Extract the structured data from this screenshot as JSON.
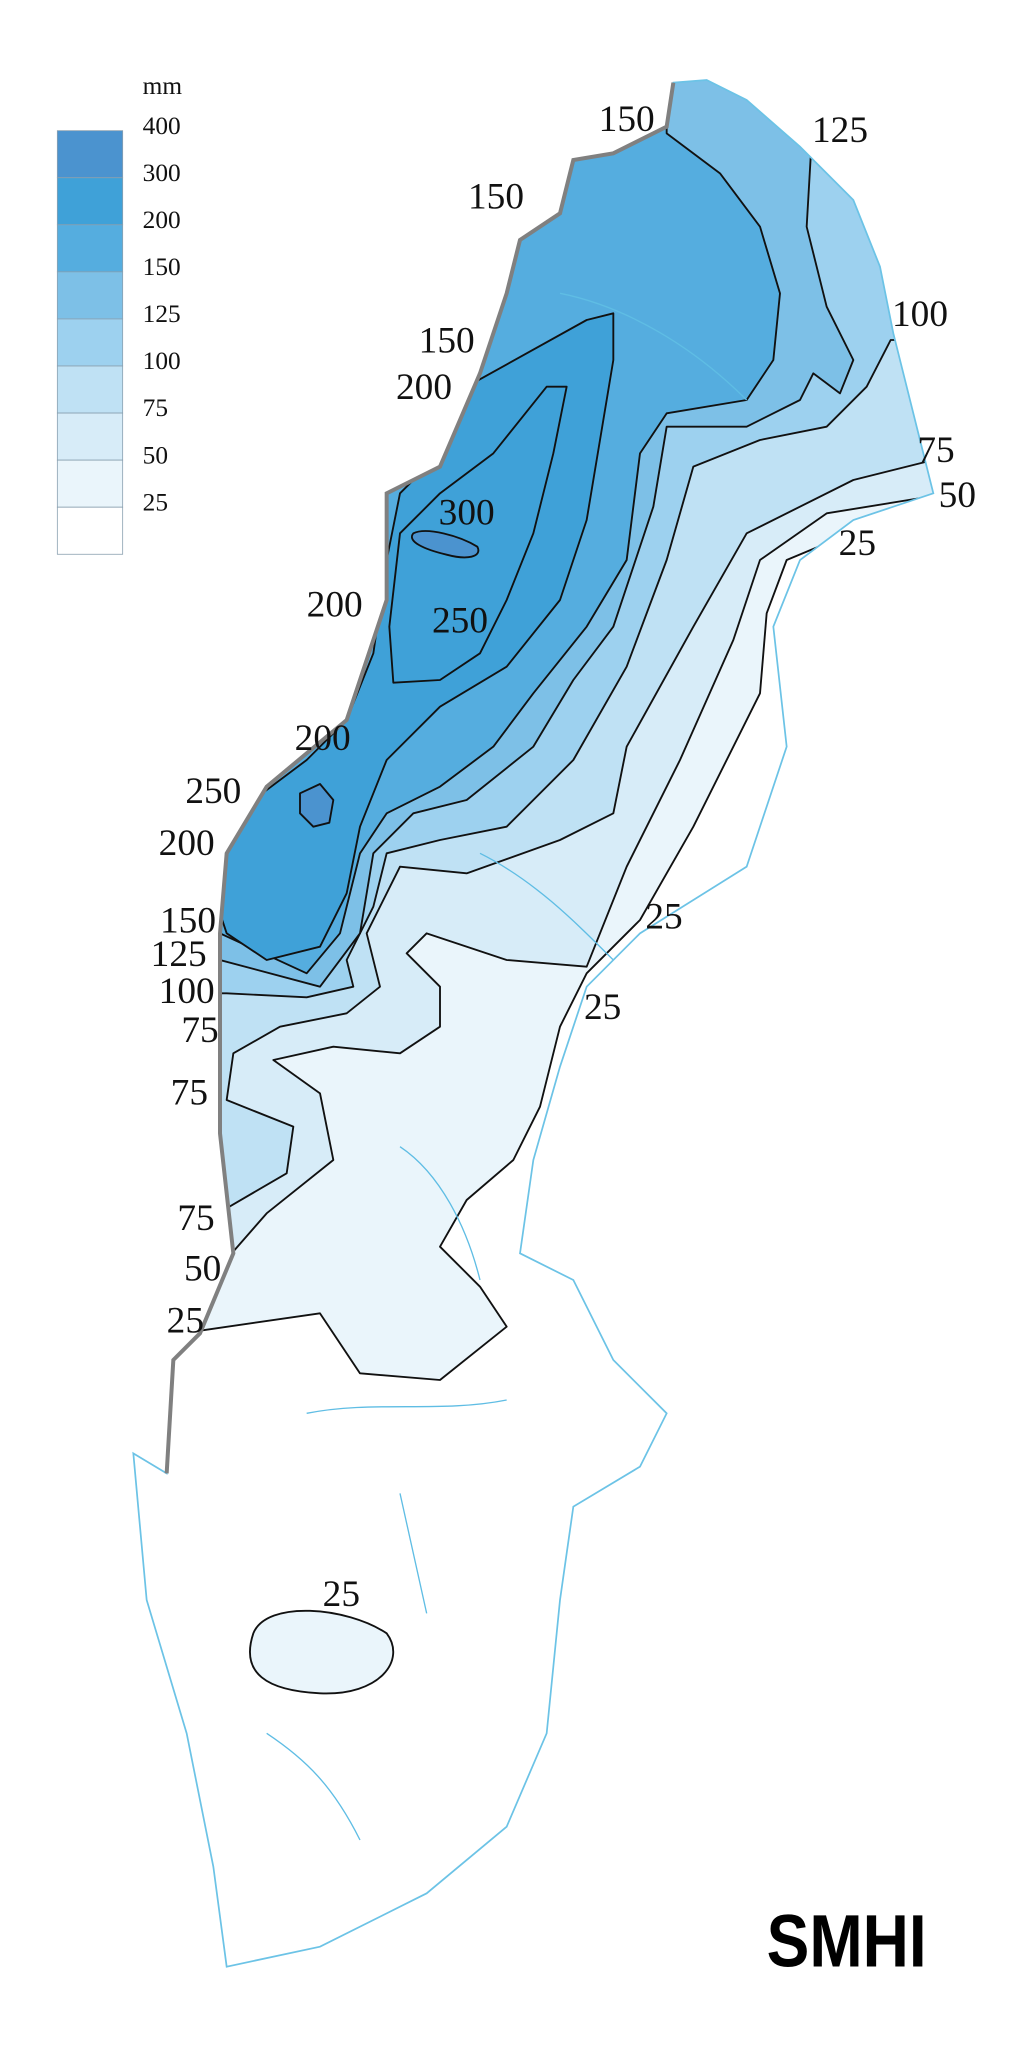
{
  "legend": {
    "unit": "mm",
    "levels": [
      400,
      300,
      200,
      150,
      125,
      100,
      75,
      50,
      25
    ],
    "colors": [
      "#4b93cf",
      "#3fa1d8",
      "#55addf",
      "#7dc0e7",
      "#9dd1ef",
      "#bfe1f4",
      "#d7ecf8",
      "#eaf5fb",
      "#ffffff"
    ]
  },
  "contour_labels": [
    150,
    125,
    150,
    100,
    150,
    200,
    75,
    50,
    300,
    25,
    200,
    250,
    200,
    250,
    200,
    25,
    150,
    125,
    100,
    25,
    75,
    75,
    75,
    50,
    25,
    25
  ],
  "logo": "SMHI"
}
